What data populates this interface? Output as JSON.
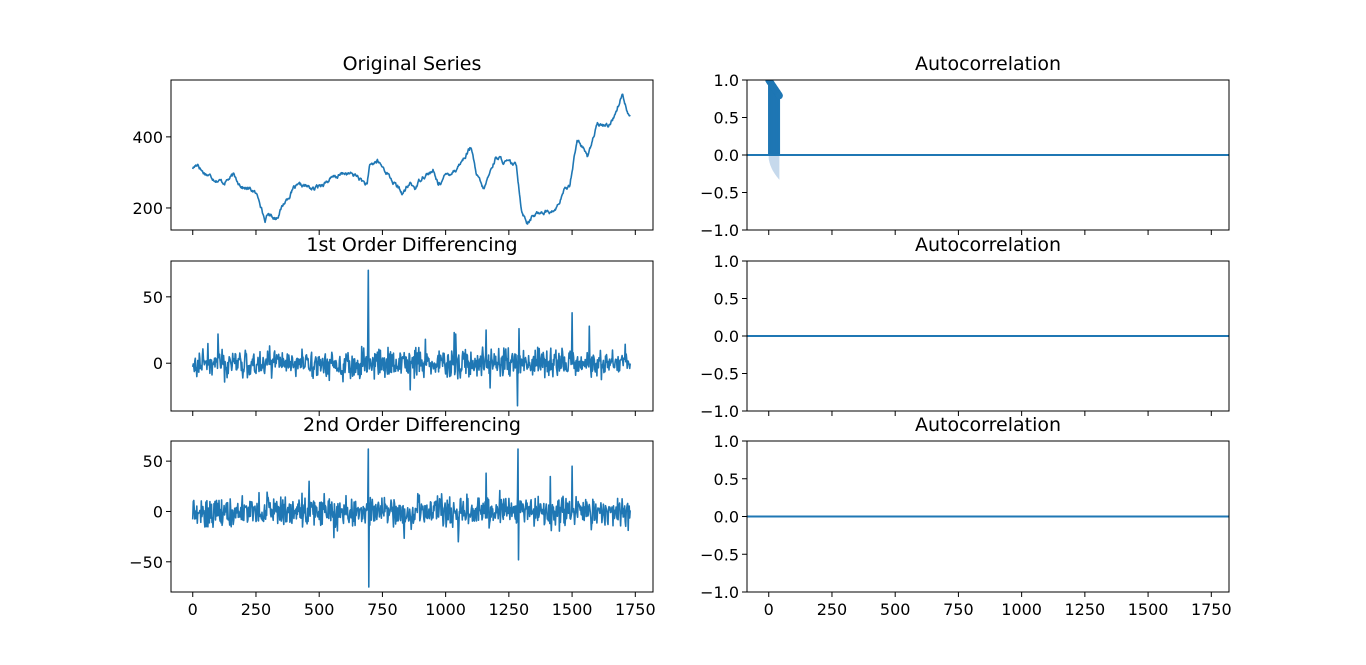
{
  "colors": {
    "series": "#1f77b4",
    "confidence_band": "#c6d9ec",
    "axes": "#000000",
    "background": "#ffffff"
  },
  "chart_data": [
    {
      "type": "line",
      "title": "Original Series",
      "xlim": [
        -86,
        1820
      ],
      "ylim": [
        138,
        560
      ],
      "xticks": [
        0,
        250,
        500,
        750,
        1000,
        1250,
        1500,
        1750
      ],
      "show_xtick_labels": false,
      "yticks": [
        200,
        400
      ],
      "ytick_labels": [
        "200",
        "400"
      ],
      "grid": false,
      "anchors": [
        [
          0,
          312
        ],
        [
          20,
          325
        ],
        [
          40,
          302
        ],
        [
          80,
          286
        ],
        [
          120,
          272
        ],
        [
          160,
          290
        ],
        [
          200,
          258
        ],
        [
          240,
          248
        ],
        [
          265,
          222
        ],
        [
          285,
          165
        ],
        [
          300,
          182
        ],
        [
          330,
          172
        ],
        [
          360,
          212
        ],
        [
          400,
          255
        ],
        [
          440,
          262
        ],
        [
          480,
          252
        ],
        [
          520,
          272
        ],
        [
          560,
          285
        ],
        [
          600,
          298
        ],
        [
          650,
          290
        ],
        [
          690,
          262
        ],
        [
          700,
          318
        ],
        [
          730,
          332
        ],
        [
          770,
          298
        ],
        [
          790,
          275
        ],
        [
          830,
          240
        ],
        [
          860,
          268
        ],
        [
          880,
          256
        ],
        [
          910,
          292
        ],
        [
          950,
          302
        ],
        [
          970,
          268
        ],
        [
          1000,
          290
        ],
        [
          1040,
          310
        ],
        [
          1070,
          338
        ],
        [
          1100,
          372
        ],
        [
          1120,
          295
        ],
        [
          1150,
          250
        ],
        [
          1180,
          308
        ],
        [
          1200,
          346
        ],
        [
          1230,
          330
        ],
        [
          1280,
          318
        ],
        [
          1300,
          198
        ],
        [
          1320,
          162
        ],
        [
          1350,
          178
        ],
        [
          1380,
          192
        ],
        [
          1420,
          188
        ],
        [
          1440,
          200
        ],
        [
          1470,
          248
        ],
        [
          1490,
          265
        ],
        [
          1520,
          395
        ],
        [
          1550,
          360
        ],
        [
          1560,
          345
        ],
        [
          1580,
          390
        ],
        [
          1600,
          432
        ],
        [
          1640,
          432
        ],
        [
          1660,
          448
        ],
        [
          1700,
          522
        ],
        [
          1720,
          472
        ],
        [
          1730,
          458
        ]
      ],
      "noise_amplitude": 9,
      "n_points": 1731
    },
    {
      "type": "bar",
      "title": "Autocorrelation",
      "xlim": [
        -86,
        1820
      ],
      "ylim": [
        -1.0,
        1.0
      ],
      "xticks": [
        0,
        250,
        500,
        750,
        1000,
        1250,
        1500,
        1750
      ],
      "show_xtick_labels": false,
      "yticks": [
        -1.0,
        -0.5,
        0.0,
        0.5,
        1.0
      ],
      "ytick_labels": [
        "−1.0",
        "−0.5",
        "0.0",
        "0.5",
        "1.0"
      ],
      "grid": false,
      "acf_values": [
        1.0,
        0.995,
        0.99,
        0.985,
        0.98,
        0.975,
        0.97,
        0.965,
        0.96,
        0.955,
        0.95,
        0.945,
        0.94,
        0.935,
        0.93,
        0.925,
        0.92,
        0.915,
        0.91,
        0.905,
        0.9,
        0.895,
        0.89,
        0.885,
        0.88,
        0.875,
        0.87,
        0.865,
        0.86,
        0.855,
        0.85,
        0.845,
        0.84,
        0.835,
        0.83,
        0.825,
        0.82,
        0.815,
        0.81,
        0.805,
        0.8,
        0.795,
        0.79
      ],
      "confidence_band_max": 0.33,
      "zero_line": true
    },
    {
      "type": "line",
      "title": "1st Order Differencing",
      "xlim": [
        -86,
        1820
      ],
      "ylim": [
        -36,
        77
      ],
      "xticks": [
        0,
        250,
        500,
        750,
        1000,
        1250,
        1500,
        1750
      ],
      "show_xtick_labels": false,
      "yticks": [
        0,
        50
      ],
      "ytick_labels": [
        "0",
        "50"
      ],
      "grid": false,
      "noise_amplitude": 8,
      "spikes": [
        [
          695,
          70
        ],
        [
          1290,
          26
        ],
        [
          1500,
          38
        ],
        [
          1285,
          -32
        ],
        [
          1160,
          25
        ],
        [
          1040,
          22
        ],
        [
          920,
          18
        ],
        [
          100,
          22
        ],
        [
          1750,
          -22
        ]
      ],
      "n_points": 1731
    },
    {
      "type": "line",
      "title": "Autocorrelation",
      "xlim": [
        -86,
        1820
      ],
      "ylim": [
        -1.0,
        1.0
      ],
      "xticks": [
        0,
        250,
        500,
        750,
        1000,
        1250,
        1500,
        1750
      ],
      "show_xtick_labels": false,
      "yticks": [
        -1.0,
        -0.5,
        0.0,
        0.5,
        1.0
      ],
      "ytick_labels": [
        "−1.0",
        "−0.5",
        "0.0",
        "0.5",
        "1.0"
      ],
      "grid": false,
      "zero_line": true
    },
    {
      "type": "line",
      "title": "2nd Order Differencing",
      "xlim": [
        -86,
        1820
      ],
      "ylim": [
        -80,
        70
      ],
      "xticks": [
        0,
        250,
        500,
        750,
        1000,
        1250,
        1500,
        1750
      ],
      "xtick_labels": [
        "0",
        "250",
        "500",
        "750",
        "1000",
        "1250",
        "1500",
        "1750"
      ],
      "show_xtick_labels": true,
      "yticks": [
        -50,
        0,
        50
      ],
      "ytick_labels": [
        "−50",
        "0",
        "50"
      ],
      "grid": false,
      "noise_amplitude": 11,
      "spikes": [
        [
          694,
          62
        ],
        [
          696,
          -75
        ],
        [
          1286,
          62
        ],
        [
          1288,
          -48
        ],
        [
          1160,
          38
        ],
        [
          1500,
          45
        ],
        [
          460,
          30
        ],
        [
          1050,
          -30
        ]
      ],
      "n_points": 1731
    },
    {
      "type": "line",
      "title": "Autocorrelation",
      "xlim": [
        -86,
        1820
      ],
      "ylim": [
        -1.0,
        1.0
      ],
      "xticks": [
        0,
        250,
        500,
        750,
        1000,
        1250,
        1500,
        1750
      ],
      "xtick_labels": [
        "0",
        "250",
        "500",
        "750",
        "1000",
        "1250",
        "1500",
        "1750"
      ],
      "show_xtick_labels": true,
      "yticks": [
        -1.0,
        -0.5,
        0.0,
        0.5,
        1.0
      ],
      "ytick_labels": [
        "−1.0",
        "−0.5",
        "0.0",
        "0.5",
        "1.0"
      ],
      "grid": false,
      "zero_line": true
    }
  ]
}
